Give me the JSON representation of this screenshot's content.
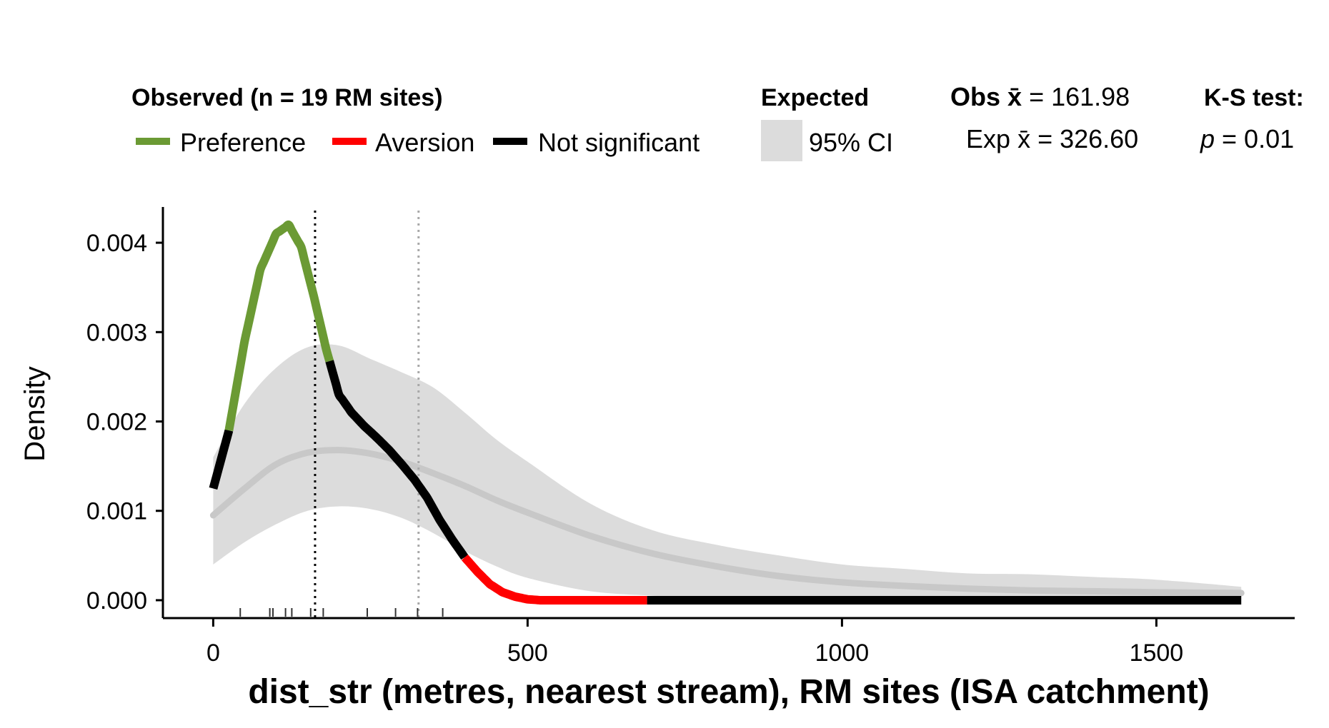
{
  "legend": {
    "observed_title": "Observed (n = 19 RM sites)",
    "preference_label": "Preference",
    "aversion_label": "Aversion",
    "not_significant_label": "Not significant",
    "expected_title": "Expected",
    "ci_label": "95% CI",
    "obs_mean_prefix": "Obs",
    "obs_mean_sym": "x̄",
    "obs_mean_value": " = 161.98",
    "exp_mean_prefix": "Exp",
    "exp_mean_sym": "x̄",
    "exp_mean_value": " = 326.60",
    "ks_title": "K-S test:",
    "p_sym": "p",
    "p_value": " = 0.01"
  },
  "colors": {
    "preference": "#6b9a34",
    "aversion": "#ff0000",
    "not_significant": "#000000",
    "ci_band": "#dcdcdc",
    "expected_line": "#c8c8c8",
    "obs_mean_line": "#000000",
    "exp_mean_line": "#a8a8a8"
  },
  "chart_data": {
    "type": "line",
    "xlabel": "dist_str (metres, nearest stream), RM sites (ISA catchment)",
    "ylabel": "Density",
    "xlim": [
      -80,
      1720
    ],
    "ylim": [
      -0.0002,
      0.0044
    ],
    "x_ticks": [
      0,
      500,
      1000,
      1500
    ],
    "x_tick_labels": [
      "0",
      "500",
      "1000",
      "1500"
    ],
    "y_ticks": [
      0,
      0.001,
      0.002,
      0.003,
      0.004
    ],
    "y_tick_labels": [
      "0.000",
      "0.001",
      "0.002",
      "0.003",
      "0.004"
    ],
    "obs_mean": 161.98,
    "exp_mean": 326.6,
    "observed_density": {
      "x": [
        0,
        25,
        50,
        75,
        100,
        120,
        140,
        160,
        180,
        200,
        220,
        240,
        260,
        280,
        300,
        320,
        340,
        360,
        380,
        400,
        420,
        440,
        460,
        480,
        500,
        520,
        540,
        570,
        600,
        650,
        700,
        800,
        900,
        1000,
        1200,
        1400,
        1635
      ],
      "y": [
        0.00125,
        0.0019,
        0.0029,
        0.0037,
        0.0041,
        0.0042,
        0.00395,
        0.0034,
        0.0028,
        0.0023,
        0.0021,
        0.00195,
        0.00182,
        0.00168,
        0.00152,
        0.00135,
        0.00115,
        0.0009,
        0.00068,
        0.00048,
        0.00032,
        0.00018,
        9e-05,
        4e-05,
        1e-05,
        0.0,
        0.0,
        0.0,
        0.0,
        0.0,
        0.0,
        0.0,
        0.0,
        0.0,
        0.0,
        0.0,
        0.0
      ]
    },
    "segments": [
      {
        "status": "not_significant",
        "from": 0,
        "to": 25
      },
      {
        "status": "preference",
        "from": 25,
        "to": 185
      },
      {
        "status": "not_significant",
        "from": 185,
        "to": 400
      },
      {
        "status": "aversion",
        "from": 400,
        "to": 690
      },
      {
        "status": "not_significant",
        "from": 690,
        "to": 1635
      }
    ],
    "expected_mean": {
      "x": [
        0,
        50,
        100,
        150,
        200,
        250,
        300,
        350,
        400,
        450,
        500,
        600,
        700,
        800,
        900,
        1000,
        1100,
        1200,
        1300,
        1400,
        1500,
        1635
      ],
      "y": [
        0.00095,
        0.00125,
        0.00152,
        0.00165,
        0.00168,
        0.00164,
        0.00155,
        0.00142,
        0.00128,
        0.00112,
        0.00098,
        0.00072,
        0.00052,
        0.00038,
        0.00027,
        0.0002,
        0.00016,
        0.00013,
        0.00011,
        0.0001,
        9e-05,
        8e-05
      ]
    },
    "ci_upper": {
      "x": [
        0,
        50,
        100,
        150,
        200,
        250,
        300,
        350,
        400,
        450,
        500,
        600,
        700,
        800,
        900,
        1000,
        1100,
        1200,
        1300,
        1400,
        1500,
        1635
      ],
      "y": [
        0.0016,
        0.0022,
        0.0026,
        0.00283,
        0.00285,
        0.0027,
        0.00255,
        0.00238,
        0.0021,
        0.0018,
        0.00155,
        0.00108,
        0.00078,
        0.00062,
        0.0005,
        0.0004,
        0.00035,
        0.0003,
        0.00029,
        0.00026,
        0.00023,
        0.00015
      ]
    },
    "ci_lower": {
      "x": [
        0,
        50,
        100,
        150,
        200,
        250,
        300,
        350,
        400,
        450,
        500,
        600,
        700,
        800,
        900,
        1000,
        1100,
        1200,
        1300,
        1400,
        1500,
        1635
      ],
      "y": [
        0.0004,
        0.00065,
        0.00085,
        0.001,
        0.00105,
        0.00102,
        0.00092,
        0.00075,
        0.00055,
        0.00038,
        0.00025,
        0.0001,
        5e-05,
        2e-05,
        0.0,
        0.0,
        0.0,
        0.0,
        0.0,
        0.0,
        0.0,
        0.0
      ]
    },
    "rug": [
      43,
      90,
      95,
      115,
      125,
      155,
      175,
      245,
      290,
      325,
      365
    ]
  }
}
